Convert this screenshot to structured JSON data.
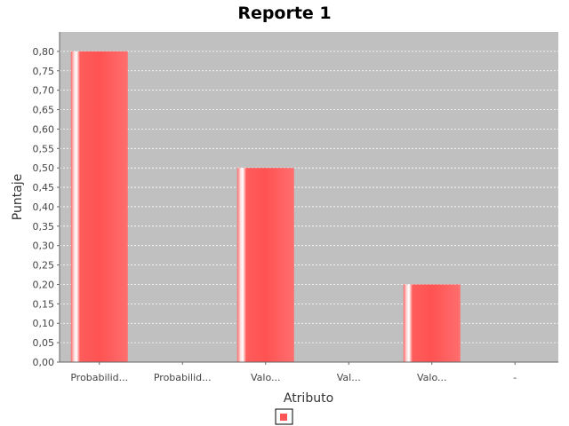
{
  "chart_data": {
    "type": "bar",
    "title": "Reporte 1",
    "xlabel": "Atributo",
    "ylabel": "Puntaje",
    "categories": [
      "Probabilid...",
      "Probabilid...",
      "Valo...",
      "Val...",
      "Valo...",
      "-"
    ],
    "series": [
      {
        "values": [
          0.8,
          0.0,
          0.5,
          0.0,
          0.2,
          0.0
        ]
      }
    ],
    "ylim": [
      0,
      0.85
    ],
    "yticks": [
      "0,00",
      "0,05",
      "0,10",
      "0,15",
      "0,20",
      "0,25",
      "0,30",
      "0,35",
      "0,40",
      "0,45",
      "0,50",
      "0,55",
      "0,60",
      "0,65",
      "0,70",
      "0,75",
      "0,80"
    ],
    "grid": true,
    "legend": "bottom-center",
    "colors": {
      "bar": "#ff5555",
      "plot_background": "#c0c0c0",
      "grid": "#ffffff"
    }
  }
}
